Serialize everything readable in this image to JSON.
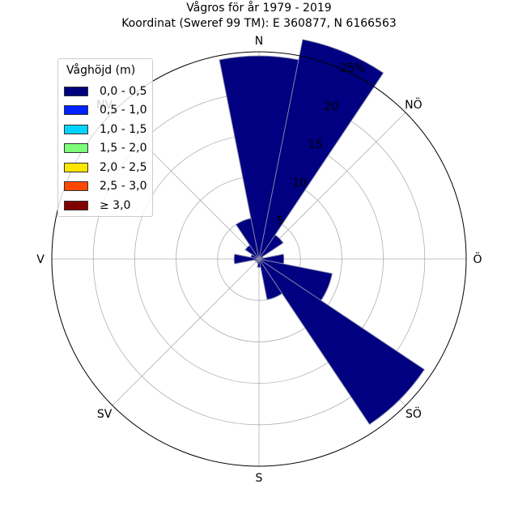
{
  "title_line1": "Vågros för år 1979 - 2019",
  "title_line2": "Koordinat (Sweref 99 TM): E 360877, N 6166563",
  "chart_data": {
    "type": "polar-bar",
    "directions": [
      "N",
      "NÖ",
      "Ö",
      "SÖ",
      "S",
      "SV",
      "V",
      "NV"
    ],
    "radial_ticks": [
      "5",
      "10",
      "15",
      "20",
      "25%"
    ],
    "rmax": 25,
    "sector_width_deg": 22.5,
    "bars": [
      {
        "angle_deg": 0,
        "value": 24.5,
        "class": "0,0 - 0,5"
      },
      {
        "angle_deg": 22.5,
        "value": 27.0,
        "class": "0,0 - 0,5"
      },
      {
        "angle_deg": 45,
        "value": 3.5,
        "class": "0,0 - 0,5"
      },
      {
        "angle_deg": 67.5,
        "value": 0.5,
        "class": "0,0 - 0,5"
      },
      {
        "angle_deg": 90,
        "value": 3.0,
        "class": "0,0 - 0,5"
      },
      {
        "angle_deg": 112.5,
        "value": 9.0,
        "class": "0,0 - 0,5"
      },
      {
        "angle_deg": 135,
        "value": 24.0,
        "class": "0,0 - 0,5"
      },
      {
        "angle_deg": 157.5,
        "value": 5.0,
        "class": "0,0 - 0,5"
      },
      {
        "angle_deg": 180,
        "value": 1.0,
        "class": "0,0 - 0,5"
      },
      {
        "angle_deg": 202.5,
        "value": 0.5,
        "class": "0,0 - 0,5"
      },
      {
        "angle_deg": 225,
        "value": 0.3,
        "class": "0,0 - 0,5"
      },
      {
        "angle_deg": 247.5,
        "value": 0.5,
        "class": "0,0 - 0,5"
      },
      {
        "angle_deg": 270,
        "value": 3.0,
        "class": "0,0 - 0,5"
      },
      {
        "angle_deg": 292.5,
        "value": 1.0,
        "class": "0,0 - 0,5"
      },
      {
        "angle_deg": 315,
        "value": 2.0,
        "class": "0,0 - 0,5"
      },
      {
        "angle_deg": 337.5,
        "value": 5.0,
        "class": "0,0 - 0,5"
      }
    ],
    "legend": {
      "title": "Våghöjd (m)",
      "placement": "top-left",
      "entries": [
        {
          "label": "0,0 - 0,5",
          "color": "#000080"
        },
        {
          "label": "0,5 - 1,0",
          "color": "#0022ff"
        },
        {
          "label": "1,0 - 1,5",
          "color": "#00d4ff"
        },
        {
          "label": "1,5 - 2,0",
          "color": "#7dff7a"
        },
        {
          "label": "2,0 - 2,5",
          "color": "#ffe600"
        },
        {
          "label": "2,5 - 3,0",
          "color": "#ff4800"
        },
        {
          "label": "≥ 3,0",
          "color": "#800000"
        }
      ]
    },
    "grid": true
  }
}
